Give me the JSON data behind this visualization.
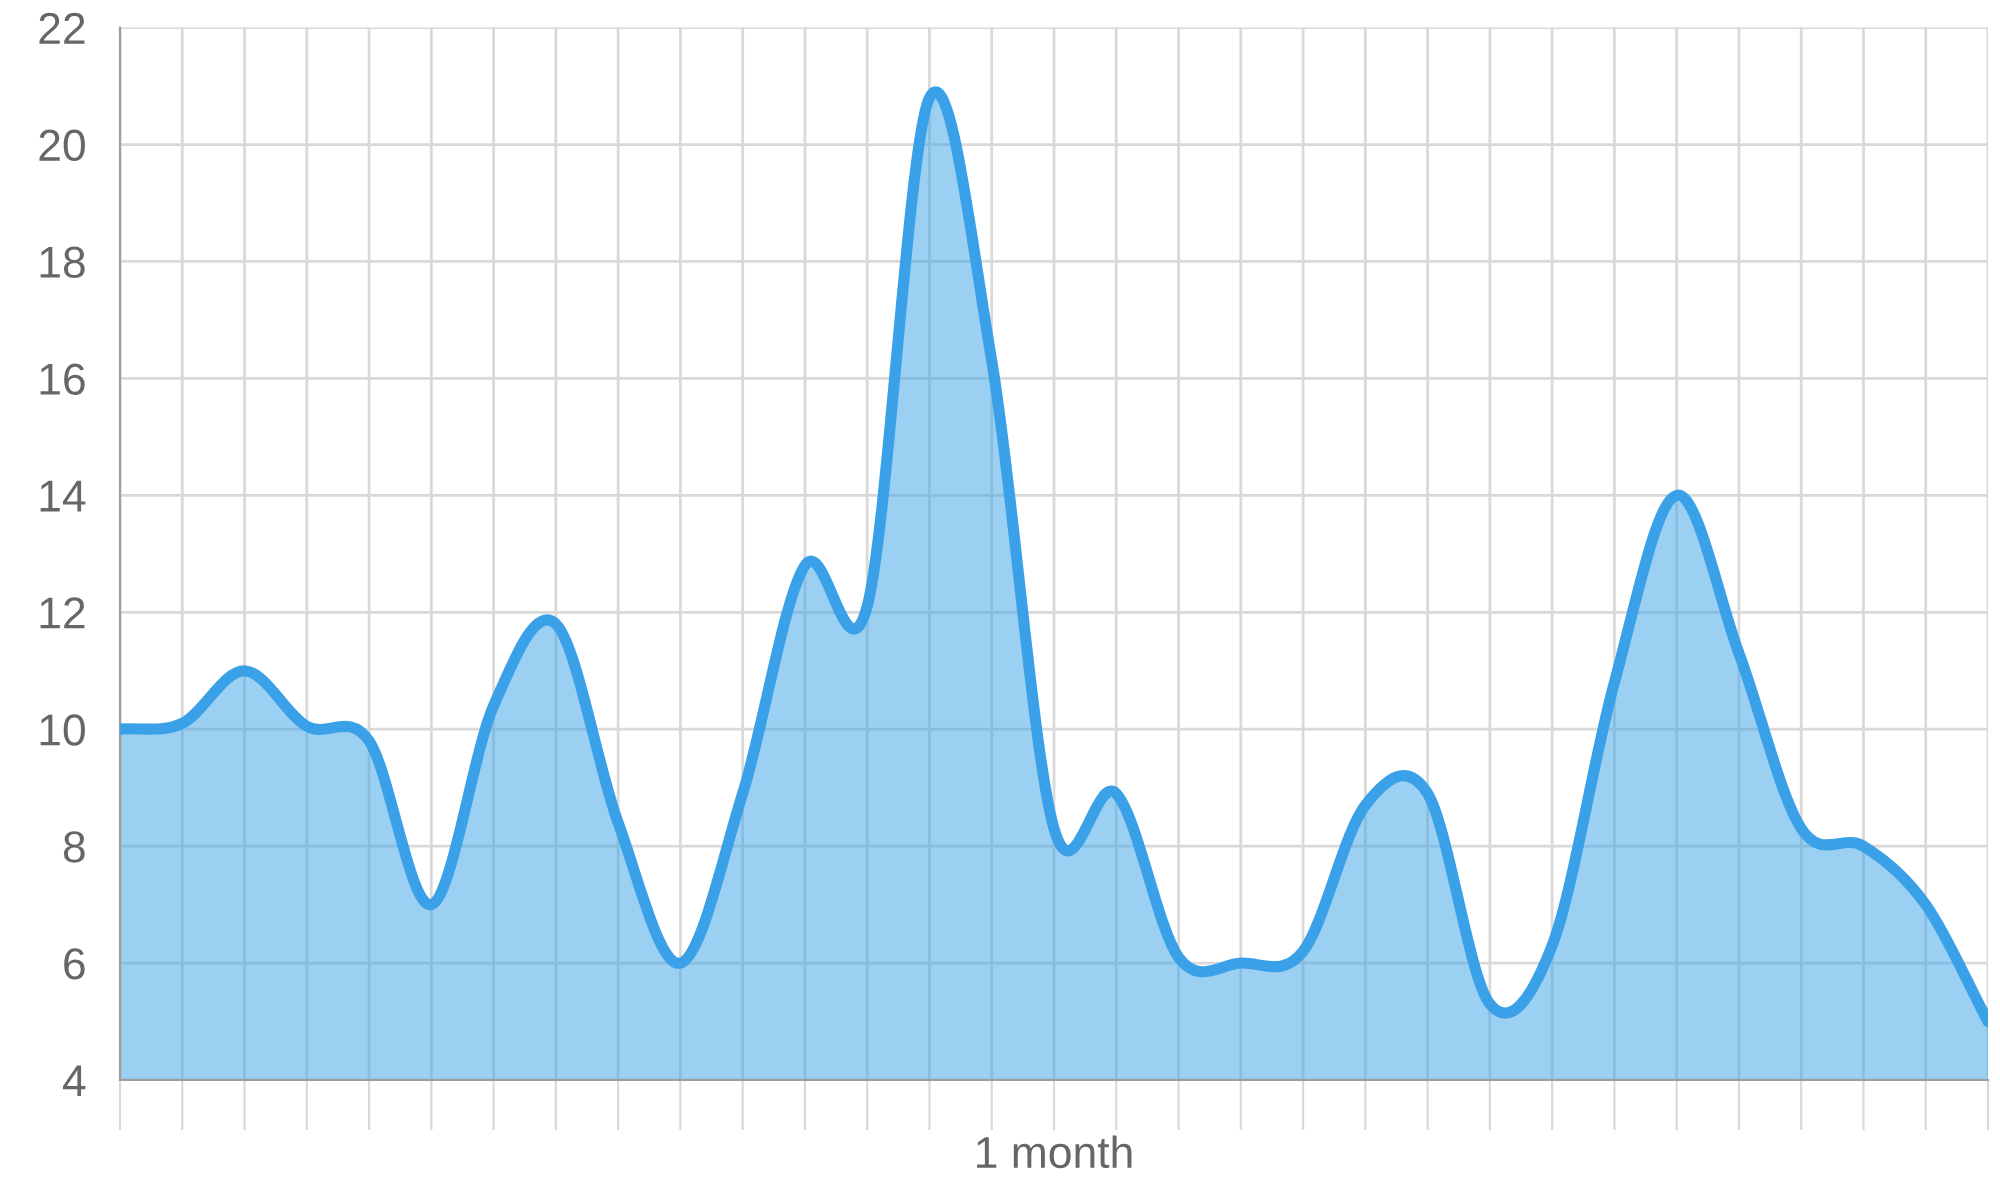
{
  "chart_data": {
    "type": "area",
    "xlabel": "1 month",
    "categories": [
      null,
      null,
      null,
      null,
      null,
      null,
      null,
      null,
      null,
      null,
      null,
      null,
      null,
      null,
      null,
      null,
      null,
      null,
      null,
      null,
      null,
      null,
      null,
      null,
      null,
      null,
      null,
      null,
      null,
      null,
      null
    ],
    "series": [
      {
        "color": "#3aa1e8",
        "values": [
          10,
          10.1,
          11,
          10.05,
          9.8,
          7,
          10.4,
          11.8,
          8.4,
          6,
          8.9,
          12.8,
          12.1,
          20.8,
          16.3,
          8.3,
          8.9,
          6.1,
          6,
          6.2,
          8.7,
          8.9,
          5.3,
          6.3,
          10.8,
          14,
          11.3,
          8.3,
          8,
          7,
          5
        ]
      }
    ],
    "ylim": [
      4,
      22
    ],
    "yticks": [
      4,
      6,
      8,
      10,
      12,
      14,
      16,
      18,
      20,
      22
    ],
    "grid": true
  }
}
